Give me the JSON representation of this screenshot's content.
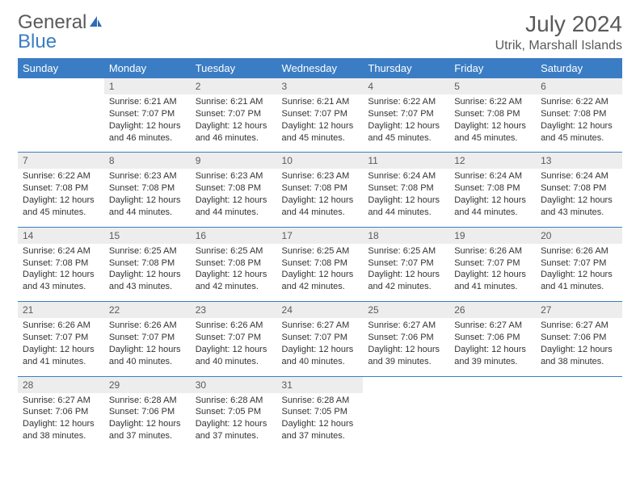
{
  "brand": {
    "word1": "General",
    "word2": "Blue"
  },
  "title": "July 2024",
  "location": "Utrik, Marshall Islands",
  "colors": {
    "header_bg": "#3b7dc4",
    "header_text": "#ffffff",
    "daynum_bg": "#ededed",
    "text": "#333333",
    "muted": "#5a5a5a",
    "rule": "#3b7dc4",
    "page_bg": "#ffffff"
  },
  "layout": {
    "cols": 7,
    "rows": 5,
    "cell_body_fontsize": 11,
    "daynum_fontsize": 12,
    "header_fontsize": 13
  },
  "weekdays": [
    "Sunday",
    "Monday",
    "Tuesday",
    "Wednesday",
    "Thursday",
    "Friday",
    "Saturday"
  ],
  "weeks": [
    [
      null,
      {
        "n": "1",
        "sr": "Sunrise: 6:21 AM",
        "ss": "Sunset: 7:07 PM",
        "d1": "Daylight: 12 hours",
        "d2": "and 46 minutes."
      },
      {
        "n": "2",
        "sr": "Sunrise: 6:21 AM",
        "ss": "Sunset: 7:07 PM",
        "d1": "Daylight: 12 hours",
        "d2": "and 46 minutes."
      },
      {
        "n": "3",
        "sr": "Sunrise: 6:21 AM",
        "ss": "Sunset: 7:07 PM",
        "d1": "Daylight: 12 hours",
        "d2": "and 45 minutes."
      },
      {
        "n": "4",
        "sr": "Sunrise: 6:22 AM",
        "ss": "Sunset: 7:07 PM",
        "d1": "Daylight: 12 hours",
        "d2": "and 45 minutes."
      },
      {
        "n": "5",
        "sr": "Sunrise: 6:22 AM",
        "ss": "Sunset: 7:08 PM",
        "d1": "Daylight: 12 hours",
        "d2": "and 45 minutes."
      },
      {
        "n": "6",
        "sr": "Sunrise: 6:22 AM",
        "ss": "Sunset: 7:08 PM",
        "d1": "Daylight: 12 hours",
        "d2": "and 45 minutes."
      }
    ],
    [
      {
        "n": "7",
        "sr": "Sunrise: 6:22 AM",
        "ss": "Sunset: 7:08 PM",
        "d1": "Daylight: 12 hours",
        "d2": "and 45 minutes."
      },
      {
        "n": "8",
        "sr": "Sunrise: 6:23 AM",
        "ss": "Sunset: 7:08 PM",
        "d1": "Daylight: 12 hours",
        "d2": "and 44 minutes."
      },
      {
        "n": "9",
        "sr": "Sunrise: 6:23 AM",
        "ss": "Sunset: 7:08 PM",
        "d1": "Daylight: 12 hours",
        "d2": "and 44 minutes."
      },
      {
        "n": "10",
        "sr": "Sunrise: 6:23 AM",
        "ss": "Sunset: 7:08 PM",
        "d1": "Daylight: 12 hours",
        "d2": "and 44 minutes."
      },
      {
        "n": "11",
        "sr": "Sunrise: 6:24 AM",
        "ss": "Sunset: 7:08 PM",
        "d1": "Daylight: 12 hours",
        "d2": "and 44 minutes."
      },
      {
        "n": "12",
        "sr": "Sunrise: 6:24 AM",
        "ss": "Sunset: 7:08 PM",
        "d1": "Daylight: 12 hours",
        "d2": "and 44 minutes."
      },
      {
        "n": "13",
        "sr": "Sunrise: 6:24 AM",
        "ss": "Sunset: 7:08 PM",
        "d1": "Daylight: 12 hours",
        "d2": "and 43 minutes."
      }
    ],
    [
      {
        "n": "14",
        "sr": "Sunrise: 6:24 AM",
        "ss": "Sunset: 7:08 PM",
        "d1": "Daylight: 12 hours",
        "d2": "and 43 minutes."
      },
      {
        "n": "15",
        "sr": "Sunrise: 6:25 AM",
        "ss": "Sunset: 7:08 PM",
        "d1": "Daylight: 12 hours",
        "d2": "and 43 minutes."
      },
      {
        "n": "16",
        "sr": "Sunrise: 6:25 AM",
        "ss": "Sunset: 7:08 PM",
        "d1": "Daylight: 12 hours",
        "d2": "and 42 minutes."
      },
      {
        "n": "17",
        "sr": "Sunrise: 6:25 AM",
        "ss": "Sunset: 7:08 PM",
        "d1": "Daylight: 12 hours",
        "d2": "and 42 minutes."
      },
      {
        "n": "18",
        "sr": "Sunrise: 6:25 AM",
        "ss": "Sunset: 7:07 PM",
        "d1": "Daylight: 12 hours",
        "d2": "and 42 minutes."
      },
      {
        "n": "19",
        "sr": "Sunrise: 6:26 AM",
        "ss": "Sunset: 7:07 PM",
        "d1": "Daylight: 12 hours",
        "d2": "and 41 minutes."
      },
      {
        "n": "20",
        "sr": "Sunrise: 6:26 AM",
        "ss": "Sunset: 7:07 PM",
        "d1": "Daylight: 12 hours",
        "d2": "and 41 minutes."
      }
    ],
    [
      {
        "n": "21",
        "sr": "Sunrise: 6:26 AM",
        "ss": "Sunset: 7:07 PM",
        "d1": "Daylight: 12 hours",
        "d2": "and 41 minutes."
      },
      {
        "n": "22",
        "sr": "Sunrise: 6:26 AM",
        "ss": "Sunset: 7:07 PM",
        "d1": "Daylight: 12 hours",
        "d2": "and 40 minutes."
      },
      {
        "n": "23",
        "sr": "Sunrise: 6:26 AM",
        "ss": "Sunset: 7:07 PM",
        "d1": "Daylight: 12 hours",
        "d2": "and 40 minutes."
      },
      {
        "n": "24",
        "sr": "Sunrise: 6:27 AM",
        "ss": "Sunset: 7:07 PM",
        "d1": "Daylight: 12 hours",
        "d2": "and 40 minutes."
      },
      {
        "n": "25",
        "sr": "Sunrise: 6:27 AM",
        "ss": "Sunset: 7:06 PM",
        "d1": "Daylight: 12 hours",
        "d2": "and 39 minutes."
      },
      {
        "n": "26",
        "sr": "Sunrise: 6:27 AM",
        "ss": "Sunset: 7:06 PM",
        "d1": "Daylight: 12 hours",
        "d2": "and 39 minutes."
      },
      {
        "n": "27",
        "sr": "Sunrise: 6:27 AM",
        "ss": "Sunset: 7:06 PM",
        "d1": "Daylight: 12 hours",
        "d2": "and 38 minutes."
      }
    ],
    [
      {
        "n": "28",
        "sr": "Sunrise: 6:27 AM",
        "ss": "Sunset: 7:06 PM",
        "d1": "Daylight: 12 hours",
        "d2": "and 38 minutes."
      },
      {
        "n": "29",
        "sr": "Sunrise: 6:28 AM",
        "ss": "Sunset: 7:06 PM",
        "d1": "Daylight: 12 hours",
        "d2": "and 37 minutes."
      },
      {
        "n": "30",
        "sr": "Sunrise: 6:28 AM",
        "ss": "Sunset: 7:05 PM",
        "d1": "Daylight: 12 hours",
        "d2": "and 37 minutes."
      },
      {
        "n": "31",
        "sr": "Sunrise: 6:28 AM",
        "ss": "Sunset: 7:05 PM",
        "d1": "Daylight: 12 hours",
        "d2": "and 37 minutes."
      },
      null,
      null,
      null
    ]
  ]
}
